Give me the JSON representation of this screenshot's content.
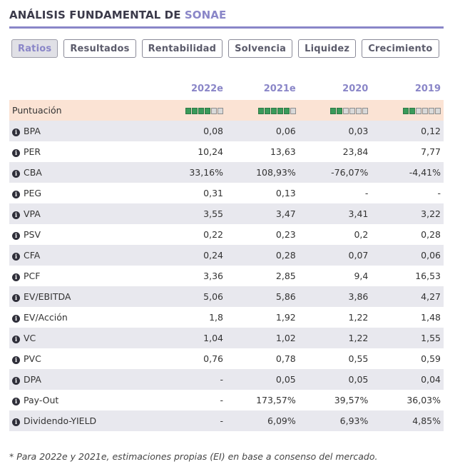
{
  "header": {
    "title_prefix": "ANÁLISIS FUNDAMENTAL DE",
    "company": "SONAE"
  },
  "colors": {
    "accent": "#8a86c8",
    "score_row": "#fbe3d4",
    "alt_row": "#e8e8ee",
    "meter_on": "#3a9a5a"
  },
  "tabs": [
    {
      "label": "Ratios",
      "active": true
    },
    {
      "label": "Resultados",
      "active": false
    },
    {
      "label": "Rentabilidad",
      "active": false
    },
    {
      "label": "Solvencia",
      "active": false
    },
    {
      "label": "Liquidez",
      "active": false
    },
    {
      "label": "Crecimiento",
      "active": false
    }
  ],
  "table": {
    "columns": [
      "2022e",
      "2021e",
      "2020",
      "2019"
    ],
    "score": {
      "label": "Puntuación",
      "values": [
        4,
        5,
        2,
        2
      ],
      "max": 6
    },
    "rows": [
      {
        "label": "BPA",
        "values": [
          "0,08",
          "0,06",
          "0,03",
          "0,12"
        ]
      },
      {
        "label": "PER",
        "values": [
          "10,24",
          "13,63",
          "23,84",
          "7,77"
        ]
      },
      {
        "label": "CBA",
        "values": [
          "33,16%",
          "108,93%",
          "-76,07%",
          "-4,41%"
        ]
      },
      {
        "label": "PEG",
        "values": [
          "0,31",
          "0,13",
          "-",
          "-"
        ]
      },
      {
        "label": "VPA",
        "values": [
          "3,55",
          "3,47",
          "3,41",
          "3,22"
        ]
      },
      {
        "label": "PSV",
        "values": [
          "0,22",
          "0,23",
          "0,2",
          "0,28"
        ]
      },
      {
        "label": "CFA",
        "values": [
          "0,24",
          "0,28",
          "0,07",
          "0,06"
        ]
      },
      {
        "label": "PCF",
        "values": [
          "3,36",
          "2,85",
          "9,4",
          "16,53"
        ]
      },
      {
        "label": "EV/EBITDA",
        "values": [
          "5,06",
          "5,86",
          "3,86",
          "4,27"
        ]
      },
      {
        "label": "EV/Acción",
        "values": [
          "1,8",
          "1,92",
          "1,22",
          "1,48"
        ]
      },
      {
        "label": "VC",
        "values": [
          "1,04",
          "1,02",
          "1,22",
          "1,55"
        ]
      },
      {
        "label": "PVC",
        "values": [
          "0,76",
          "0,78",
          "0,55",
          "0,59"
        ]
      },
      {
        "label": "DPA",
        "values": [
          "-",
          "0,05",
          "0,05",
          "0,04"
        ]
      },
      {
        "label": "Pay-Out",
        "values": [
          "-",
          "173,57%",
          "39,57%",
          "36,03%"
        ]
      },
      {
        "label": "Dividendo-YIELD",
        "values": [
          "-",
          "6,09%",
          "6,93%",
          "4,85%"
        ]
      }
    ]
  },
  "footnote": "* Para 2022e y 2021e, estimaciones propias (EI) en base a consenso del mercado."
}
